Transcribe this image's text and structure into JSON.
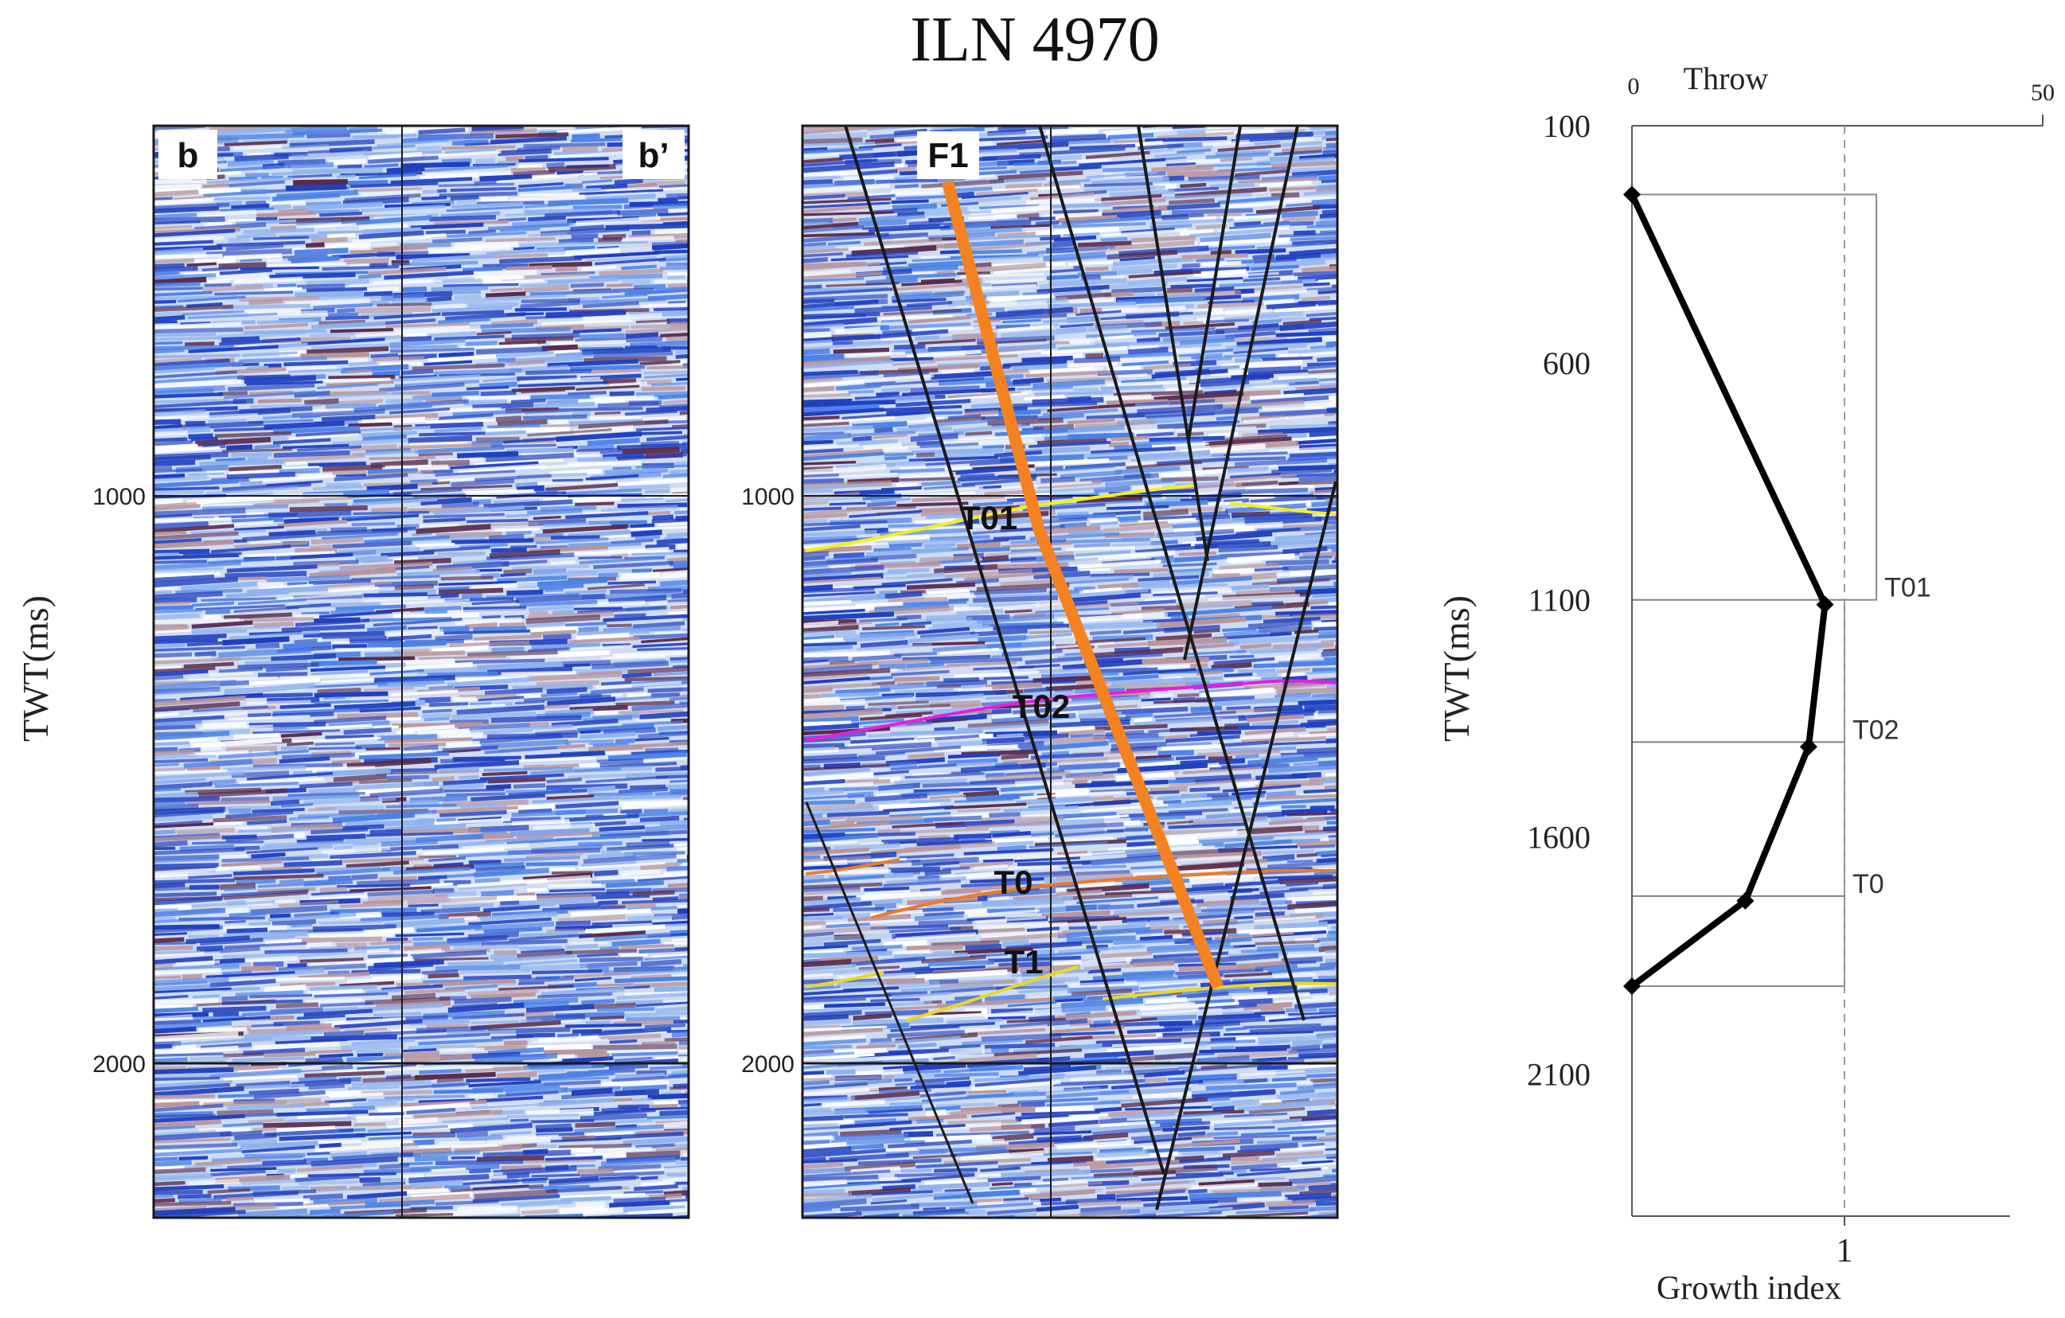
{
  "figure_title": "ILN 4970",
  "left_panel": {
    "label_left": "b",
    "label_right": "b’",
    "axis_title": "TWT(ms)",
    "ticks": [
      "1000",
      "2000"
    ]
  },
  "right_panel": {
    "fault_label": "F1",
    "horizons": [
      "T01",
      "T02",
      "T0",
      "T1"
    ],
    "ticks": [
      "1000",
      "2000"
    ],
    "colors": {
      "T01": "#f2f01e",
      "T02": "#e81ee0",
      "T0": "#f07a28",
      "T1": "#ecd722",
      "F1": "#f58220",
      "faults": "#1a1a1a"
    }
  },
  "chart_data": {
    "type": "line",
    "title": "",
    "top_axis": {
      "label": "Throw",
      "min_label": "0",
      "max_label": "50",
      "range": [
        0,
        50
      ]
    },
    "bottom_axis": {
      "label": "Growth index",
      "tick_label": "1",
      "tick_value": 1
    },
    "ylabel": "TWT(ms)",
    "ylim": [
      100,
      2400
    ],
    "y_ticks": [
      "100",
      "600",
      "1100",
      "1600",
      "2100"
    ],
    "series": [
      {
        "name": "Throw",
        "points": [
          {
            "twt": 245,
            "throw": 0
          },
          {
            "twt": 1110,
            "throw": 23.5
          },
          {
            "twt": 1410,
            "throw": 21.5
          },
          {
            "twt": 1735,
            "throw": 13.8
          },
          {
            "twt": 1915,
            "throw": 0
          }
        ]
      }
    ],
    "growth_index_intervals": [
      {
        "from": 245,
        "to": 1100,
        "value": 1.15,
        "label": "T01"
      },
      {
        "from": 1100,
        "to": 1400,
        "value": 1.0,
        "label": "T02"
      },
      {
        "from": 1400,
        "to": 1725,
        "value": 1.0,
        "label": "T0"
      },
      {
        "from": 1725,
        "to": 1915,
        "value": 1.0,
        "label": ""
      }
    ]
  }
}
